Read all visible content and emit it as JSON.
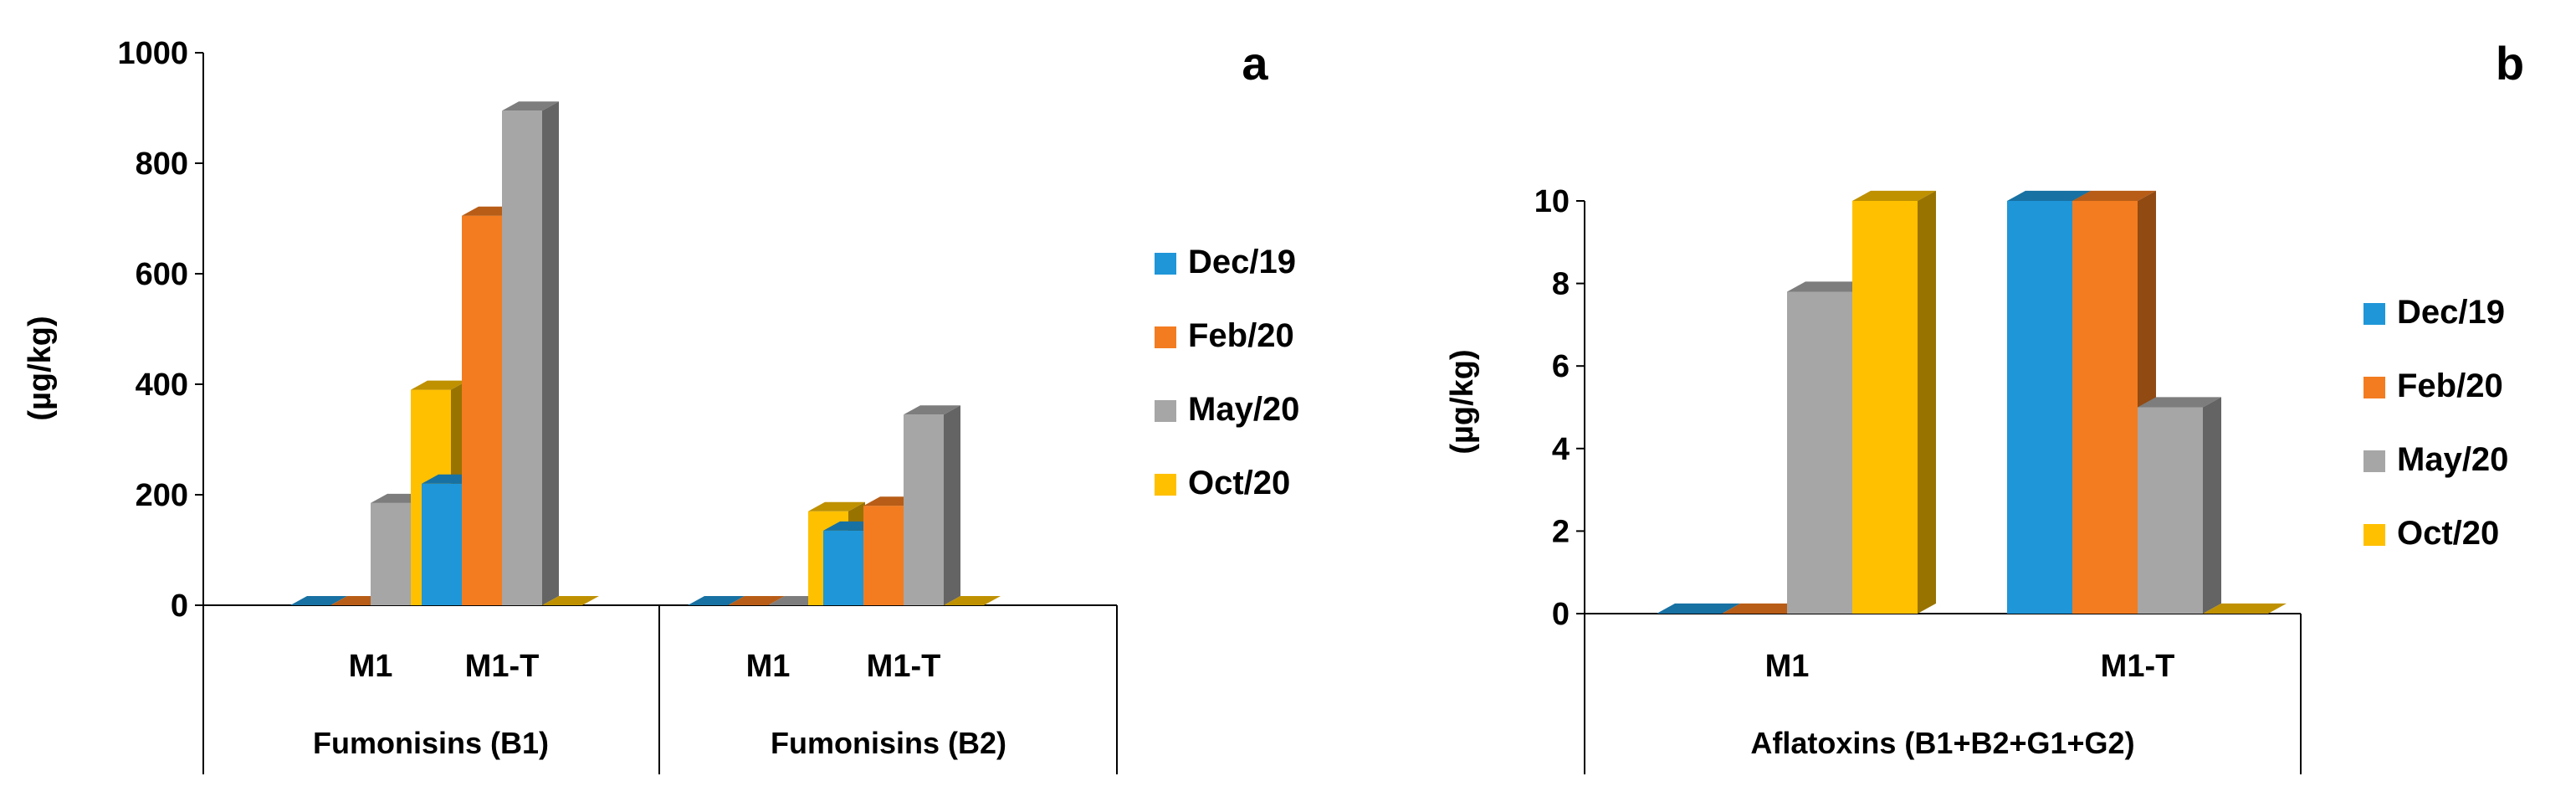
{
  "chart_data": [
    {
      "type": "bar",
      "panel_label": "a",
      "ylabel": "(µg/kg)",
      "ylim": [
        0,
        1000
      ],
      "yticks": [
        "0",
        "200",
        "400",
        "600",
        "800",
        "1000"
      ],
      "categories": [
        "M1",
        "M1-T",
        "M1",
        "M1-T"
      ],
      "groups": [
        {
          "name": "Fumonisins (B1)",
          "categories": [
            "M1",
            "M1-T"
          ]
        },
        {
          "name": "Fumonisins (B2)",
          "categories": [
            "M1",
            "M1-T"
          ]
        }
      ],
      "legend_position": "right",
      "series": [
        {
          "name": "Dec/19",
          "color": "#1e96d8",
          "values": [
            0,
            220,
            0,
            135
          ]
        },
        {
          "name": "Feb/20",
          "color": "#f47c20",
          "values": [
            0,
            705,
            0,
            180
          ]
        },
        {
          "name": "May/20",
          "color": "#a6a6a6",
          "values": [
            185,
            895,
            0,
            345
          ]
        },
        {
          "name": "Oct/20",
          "color": "#ffc000",
          "values": [
            390,
            0,
            170,
            0
          ]
        }
      ]
    },
    {
      "type": "bar",
      "panel_label": "b",
      "ylabel": "(µg/kg)",
      "ylim": [
        0,
        10
      ],
      "yticks": [
        "0",
        "2",
        "4",
        "6",
        "8",
        "10"
      ],
      "categories": [
        "M1",
        "M1-T"
      ],
      "groups": [
        {
          "name": "Aflatoxins (B1+B2+G1+G2)",
          "categories": [
            "M1",
            "M1-T"
          ]
        }
      ],
      "legend_position": "right",
      "series": [
        {
          "name": "Dec/19",
          "color": "#1e96d8",
          "values": [
            0,
            10
          ]
        },
        {
          "name": "Feb/20",
          "color": "#f47c20",
          "values": [
            0,
            10
          ]
        },
        {
          "name": "May/20",
          "color": "#a6a6a6",
          "values": [
            7.8,
            5
          ]
        },
        {
          "name": "Oct/20",
          "color": "#ffc000",
          "values": [
            10,
            0
          ]
        }
      ]
    }
  ]
}
